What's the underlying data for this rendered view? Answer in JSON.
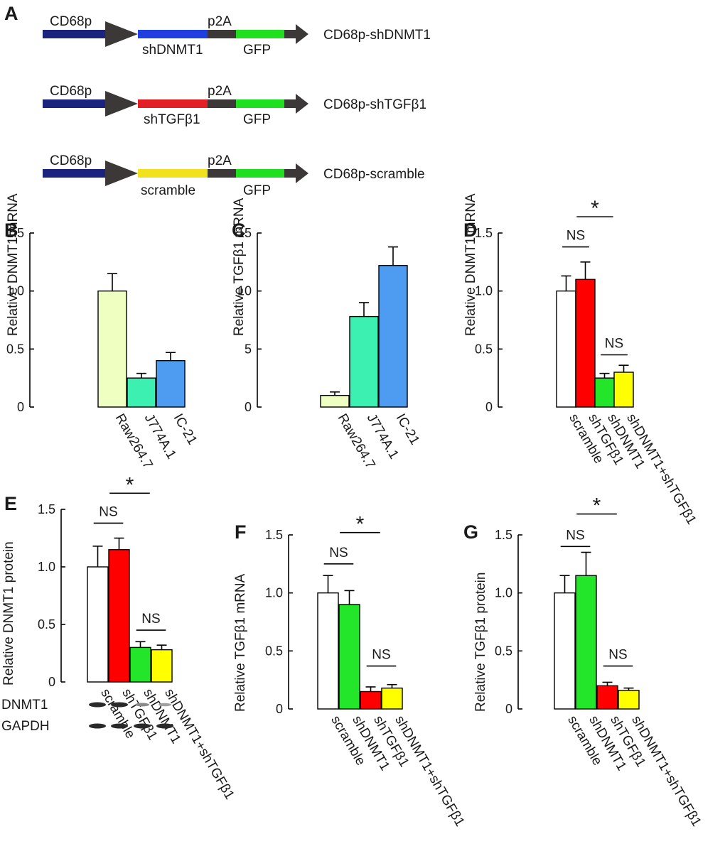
{
  "colors": {
    "cd68p": "#1a237e",
    "arrow_head": "#3d3838",
    "shDNMT1_seg": "#1f3fe0",
    "shTGFb1_seg": "#e21e26",
    "scramble_seg": "#f2e21d",
    "p2A_seg": "#3d3838",
    "GFP_seg": "#1fe01f",
    "raw": "#efffc2",
    "j774": "#3cf0b2",
    "ic21": "#4d9cf2",
    "white": "#ffffff",
    "red": "#ff0000",
    "green": "#23e62a",
    "yellow": "#ffff00"
  },
  "panel_a": {
    "letter": "A",
    "constructs": [
      {
        "promoter": "CD68p",
        "insert": "shDNMT1",
        "linker": "p2A",
        "reporter": "GFP",
        "name": "CD68p-shDNMT1"
      },
      {
        "promoter": "CD68p",
        "insert": "shTGFβ1",
        "linker": "p2A",
        "reporter": "GFP",
        "name": "CD68p-shTGFβ1"
      },
      {
        "promoter": "CD68p",
        "insert": "scramble",
        "linker": "p2A",
        "reporter": "GFP",
        "name": "CD68p-scramble"
      }
    ]
  },
  "blot": {
    "labels": [
      "DNMT1",
      "GAPDH"
    ]
  },
  "chart_data": [
    {
      "panel": "B",
      "type": "bar",
      "categories": [
        "Raw264.7",
        "J774A.1",
        "IC-21"
      ],
      "values": [
        1.0,
        0.25,
        0.4
      ],
      "errors": [
        0.15,
        0.04,
        0.07
      ],
      "colors": [
        "raw",
        "j774",
        "ic21"
      ],
      "ylabel": "Relative DNMT1 mRNA",
      "ylim": [
        0,
        1.5
      ],
      "yticks": [
        0,
        0.5,
        1.0,
        1.5
      ],
      "ytick_labels": [
        "0",
        "0.5",
        "1.0",
        "1.5"
      ],
      "annotations": []
    },
    {
      "panel": "C",
      "type": "bar",
      "categories": [
        "Raw264.7",
        "J774A.1",
        "IC-21"
      ],
      "values": [
        1.0,
        7.8,
        12.2
      ],
      "errors": [
        0.3,
        1.2,
        1.6
      ],
      "colors": [
        "raw",
        "j774",
        "ic21"
      ],
      "ylabel": "Relative TGFβ1 mRNA",
      "ylim": [
        0,
        15
      ],
      "yticks": [
        0,
        5,
        10,
        15
      ],
      "ytick_labels": [
        "0",
        "5",
        "10",
        "15"
      ],
      "annotations": []
    },
    {
      "panel": "D",
      "type": "bar",
      "categories": [
        "scramble",
        "shTGFβ1",
        "shDNMT1",
        "shDNMT1+shTGFβ1"
      ],
      "values": [
        1.0,
        1.1,
        0.25,
        0.3
      ],
      "errors": [
        0.13,
        0.15,
        0.04,
        0.06
      ],
      "colors": [
        "white",
        "red",
        "green",
        "yellow"
      ],
      "ylabel": "Relative DNMT1 mRNA",
      "ylim": [
        0,
        1.5
      ],
      "yticks": [
        0,
        0.5,
        1.0,
        1.5
      ],
      "ytick_labels": [
        "0",
        "0.5",
        "1.0",
        "1.5"
      ],
      "annotations": [
        {
          "text": "NS",
          "from": 0,
          "to": 1,
          "level": 1.38
        },
        {
          "text": "NS",
          "from": 2,
          "to": 3,
          "level": 0.45
        },
        {
          "text": "*",
          "from": 0.75,
          "to": 2.25,
          "level": 1.64
        }
      ]
    },
    {
      "panel": "E",
      "type": "bar",
      "categories": [
        "scramble",
        "shTGFβ1",
        "shDNMT1",
        "shDNMT1+shTGFβ1"
      ],
      "values": [
        1.0,
        1.15,
        0.3,
        0.28
      ],
      "errors": [
        0.18,
        0.1,
        0.05,
        0.04
      ],
      "colors": [
        "white",
        "red",
        "green",
        "yellow"
      ],
      "ylabel": "Relative DNMT1 protein",
      "ylim": [
        0,
        1.5
      ],
      "yticks": [
        0,
        0.5,
        1.0,
        1.5
      ],
      "ytick_labels": [
        "0",
        "0.5",
        "1.0",
        "1.5"
      ],
      "annotations": [
        {
          "text": "NS",
          "from": 0,
          "to": 1,
          "level": 1.38
        },
        {
          "text": "NS",
          "from": 2,
          "to": 3,
          "level": 0.45
        },
        {
          "text": "*",
          "from": 0.75,
          "to": 2.25,
          "level": 1.64
        }
      ]
    },
    {
      "panel": "F",
      "type": "bar",
      "categories": [
        "scramble",
        "shDNMT1",
        "shTGFβ1",
        "shDNMT1+shTGFβ1"
      ],
      "values": [
        1.0,
        0.9,
        0.15,
        0.18
      ],
      "errors": [
        0.15,
        0.12,
        0.04,
        0.03
      ],
      "colors": [
        "white",
        "green",
        "red",
        "yellow"
      ],
      "ylabel": "Relative TGFβ1 mRNA",
      "ylim": [
        0,
        1.5
      ],
      "yticks": [
        0,
        0.5,
        1.0,
        1.5
      ],
      "ytick_labels": [
        "0",
        "0.5",
        "1.0",
        "1.5"
      ],
      "annotations": [
        {
          "text": "NS",
          "from": 0,
          "to": 1,
          "level": 1.25
        },
        {
          "text": "NS",
          "from": 2,
          "to": 3,
          "level": 0.37
        },
        {
          "text": "*",
          "from": 0.75,
          "to": 2.25,
          "level": 1.52
        }
      ]
    },
    {
      "panel": "G",
      "type": "bar",
      "categories": [
        "scramble",
        "shDNMT1",
        "shTGFβ1",
        "shDNMT1+shTGFβ1"
      ],
      "values": [
        1.0,
        1.15,
        0.2,
        0.16
      ],
      "errors": [
        0.15,
        0.2,
        0.03,
        0.02
      ],
      "colors": [
        "white",
        "green",
        "red",
        "yellow"
      ],
      "ylabel": "Relative  TGFβ1 protein",
      "ylim": [
        0,
        1.5
      ],
      "yticks": [
        0,
        0.5,
        1.0,
        1.5
      ],
      "ytick_labels": [
        "0",
        "0.5",
        "1.0",
        "1.5"
      ],
      "annotations": [
        {
          "text": "NS",
          "from": 0,
          "to": 1,
          "level": 1.4
        },
        {
          "text": "NS",
          "from": 2,
          "to": 3,
          "level": 0.37
        },
        {
          "text": "*",
          "from": 0.75,
          "to": 2.25,
          "level": 1.68
        }
      ]
    }
  ]
}
